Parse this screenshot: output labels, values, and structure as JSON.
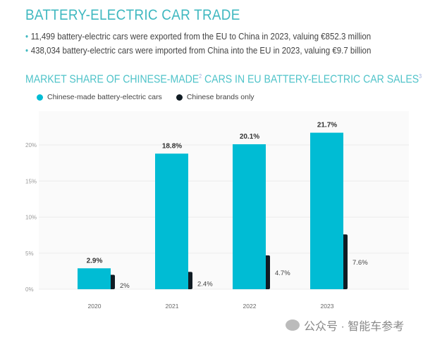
{
  "header": {
    "title": "BATTERY-ELECTRIC CAR TRADE",
    "bullets": [
      "11,499 battery-electric cars were exported from the EU to China in 2023, valuing €852.3 million",
      "438,034 battery-electric cars were imported from China into the EU in 2023, valuing €9.7 billion"
    ],
    "subtitle_part1": "MARKET SHARE OF CHINESE-MADE",
    "subtitle_sup1": "2",
    "subtitle_part2": "CARS IN EU BATTERY-ELECTRIC CAR SALES",
    "subtitle_sup2": "3"
  },
  "chart_data": {
    "type": "bar",
    "title": "MARKET SHARE OF CHINESE-MADE CARS IN EU BATTERY-ELECTRIC CAR SALES",
    "categories": [
      "2020",
      "2021",
      "2022",
      "2023"
    ],
    "series": [
      {
        "name": "Chinese-made battery-electric cars",
        "values": [
          2.9,
          18.8,
          20.1,
          21.7
        ],
        "labels": [
          "2.9%",
          "18.8%",
          "20.1%",
          "21.7%"
        ],
        "color": "#00bcd4"
      },
      {
        "name": "Chinese brands only",
        "values": [
          2,
          2.4,
          4.7,
          7.6
        ],
        "labels": [
          "2%",
          "2.4%",
          "4.7%",
          "7.6%"
        ],
        "color": "#111c24"
      }
    ],
    "yticks": [
      "0%",
      "5%",
      "10%",
      "15%",
      "20%"
    ],
    "ylim": [
      0,
      25
    ],
    "grid": true,
    "legend": "top-left"
  },
  "watermark": "公众号 · 智能车参考"
}
